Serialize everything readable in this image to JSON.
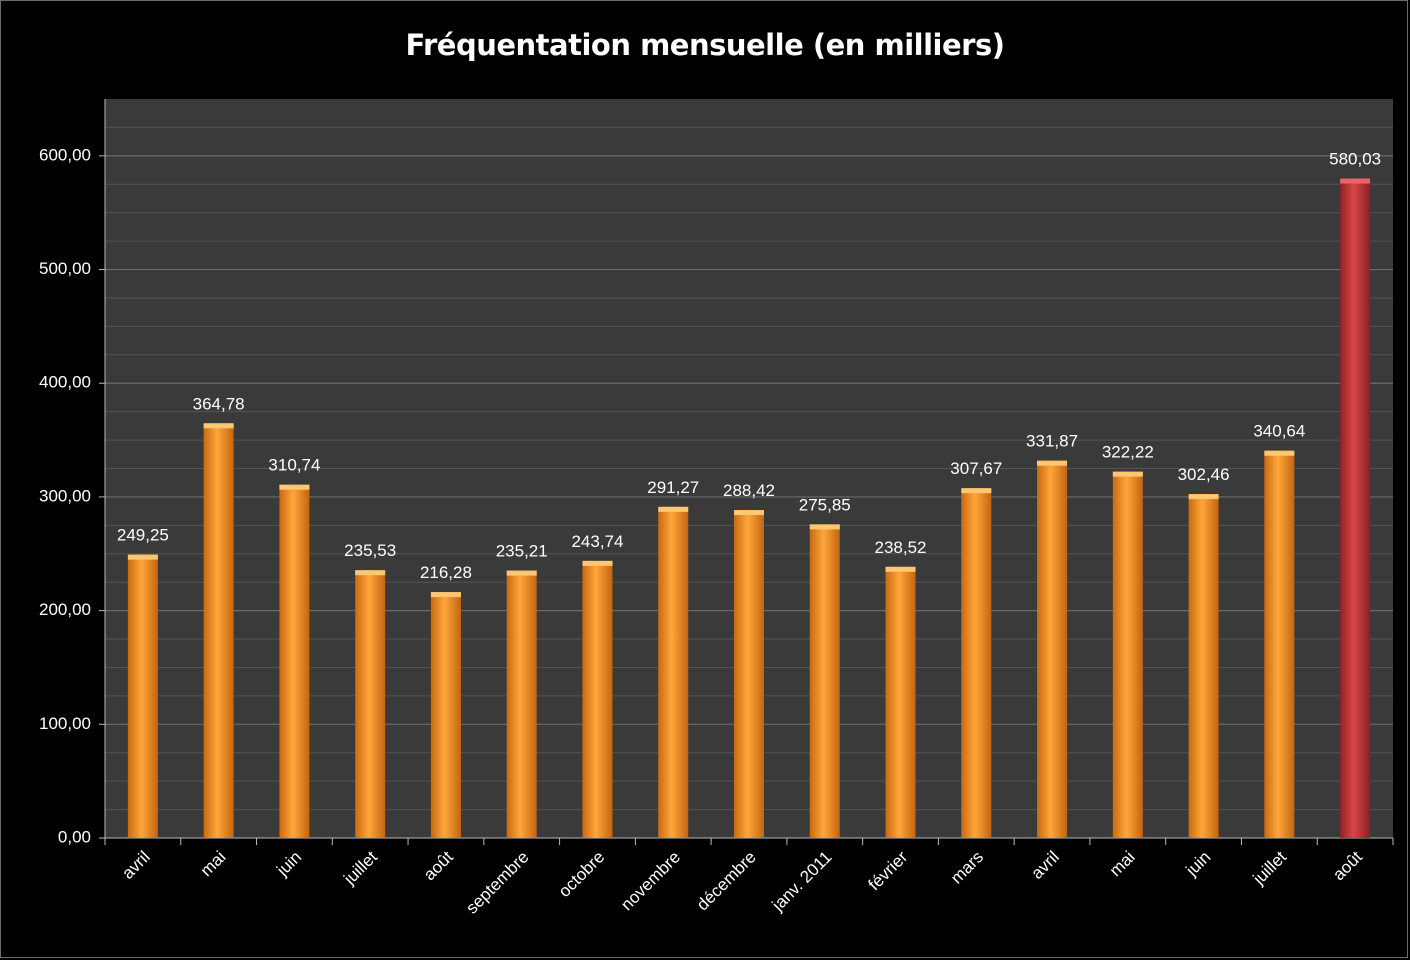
{
  "chart_data": {
    "type": "bar",
    "title": "Fréquentation mensuelle (en milliers)",
    "xlabel": "",
    "ylabel": "",
    "ylim": [
      0,
      650
    ],
    "yticks": [
      0,
      100,
      200,
      300,
      400,
      500,
      600
    ],
    "ytick_labels": [
      "0,00",
      "100,00",
      "200,00",
      "300,00",
      "400,00",
      "500,00",
      "600,00"
    ],
    "grid": true,
    "categories": [
      "avril",
      "mai",
      "juin",
      "juillet",
      "août",
      "septembre",
      "octobre",
      "novembre",
      "décembre",
      "janv. 2011",
      "février",
      "mars",
      "avril",
      "mai",
      "juin",
      "juillet",
      "août"
    ],
    "values": [
      249.25,
      364.78,
      310.74,
      235.53,
      216.28,
      235.21,
      243.74,
      291.27,
      288.42,
      275.85,
      238.52,
      307.67,
      331.87,
      322.22,
      302.46,
      340.64,
      580.03
    ],
    "value_labels": [
      "249,25",
      "364,78",
      "310,74",
      "235,53",
      "216,28",
      "235,21",
      "243,74",
      "291,27",
      "288,42",
      "275,85",
      "238,52",
      "307,67",
      "331,87",
      "322,22",
      "302,46",
      "340,64",
      "580,03"
    ],
    "colors": {
      "background": "#000000",
      "plot_area": "#3a3a3a",
      "gridline": "#6a6a6a",
      "bar": "#f7921e",
      "highlight_bar": "#c9393b"
    },
    "highlight_index": 16
  }
}
